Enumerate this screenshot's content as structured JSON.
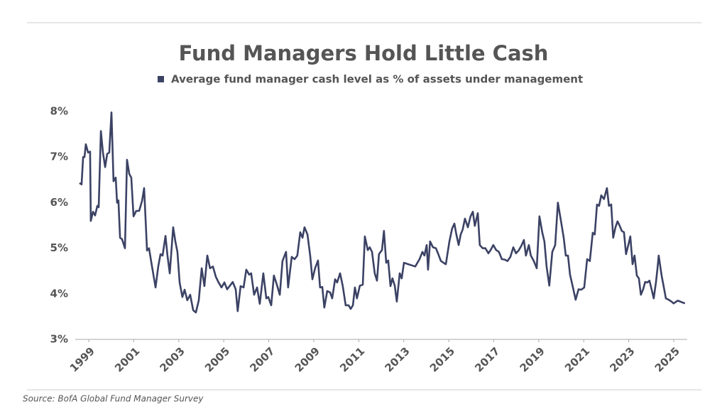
{
  "chart_data": {
    "type": "line",
    "title": "Fund Managers Hold Little Cash",
    "source": "Source: BofA Global Fund Manager Survey",
    "x": [
      1998.59,
      1998.68,
      1998.75,
      1998.81,
      1998.87,
      1998.97,
      1999.06,
      1999.09,
      1999.19,
      1999.28,
      1999.38,
      1999.44,
      1999.54,
      1999.63,
      1999.73,
      1999.82,
      1999.91,
      2000.01,
      2000.1,
      2000.2,
      2000.26,
      2000.32,
      2000.39,
      2000.48,
      2000.61,
      2000.7,
      2000.8,
      2000.89,
      2000.99,
      2001.11,
      2001.24,
      2001.37,
      2001.46,
      2001.59,
      2001.68,
      2001.81,
      2001.97,
      2002.09,
      2002.19,
      2002.28,
      2002.41,
      2002.5,
      2002.6,
      2002.75,
      2002.85,
      2002.94,
      2003.04,
      2003.16,
      2003.26,
      2003.38,
      2003.51,
      2003.64,
      2003.76,
      2003.89,
      2004.02,
      2004.14,
      2004.27,
      2004.39,
      2004.52,
      2004.65,
      2004.77,
      2004.9,
      2005.03,
      2005.15,
      2005.28,
      2005.4,
      2005.53,
      2005.62,
      2005.75,
      2005.88,
      2006.0,
      2006.13,
      2006.22,
      2006.35,
      2006.48,
      2006.6,
      2006.76,
      2006.89,
      2006.98,
      2007.11,
      2007.23,
      2007.36,
      2007.49,
      2007.61,
      2007.77,
      2007.86,
      2008.02,
      2008.15,
      2008.27,
      2008.4,
      2008.5,
      2008.59,
      2008.72,
      2008.84,
      2008.94,
      2009.06,
      2009.19,
      2009.28,
      2009.38,
      2009.47,
      2009.6,
      2009.73,
      2009.82,
      2009.95,
      2010.04,
      2010.17,
      2010.29,
      2010.42,
      2010.55,
      2010.64,
      2010.74,
      2010.83,
      2010.92,
      2011.05,
      2011.18,
      2011.27,
      2011.4,
      2011.49,
      2011.59,
      2011.71,
      2011.81,
      2011.9,
      2012.03,
      2012.12,
      2012.22,
      2012.31,
      2012.41,
      2012.5,
      2012.6,
      2012.69,
      2012.82,
      2012.91,
      2013.01,
      2013.51,
      2013.7,
      2013.83,
      2013.92,
      2014.02,
      2014.08,
      2014.17,
      2014.3,
      2014.43,
      2014.52,
      2014.65,
      2014.77,
      2014.87,
      2015.03,
      2015.15,
      2015.25,
      2015.34,
      2015.44,
      2015.53,
      2015.62,
      2015.72,
      2015.85,
      2015.97,
      2016.07,
      2016.16,
      2016.29,
      2016.38,
      2016.51,
      2016.63,
      2016.76,
      2016.86,
      2016.98,
      2017.11,
      2017.23,
      2017.36,
      2017.49,
      2017.61,
      2017.74,
      2017.87,
      2017.99,
      2018.12,
      2018.24,
      2018.34,
      2018.43,
      2018.56,
      2018.65,
      2018.78,
      2018.91,
      2019.03,
      2019.16,
      2019.25,
      2019.35,
      2019.47,
      2019.6,
      2019.73,
      2019.85,
      2019.98,
      2020.11,
      2020.2,
      2020.3,
      2020.39,
      2020.52,
      2020.64,
      2020.77,
      2020.89,
      2021.02,
      2021.15,
      2021.27,
      2021.4,
      2021.49,
      2021.59,
      2021.68,
      2021.78,
      2021.9,
      2022.03,
      2022.12,
      2022.22,
      2022.31,
      2022.41,
      2022.5,
      2022.6,
      2022.69,
      2022.79,
      2022.88,
      2022.98,
      2023.07,
      2023.17,
      2023.26,
      2023.36,
      2023.45,
      2023.54,
      2023.64,
      2023.73,
      2023.83,
      2023.92,
      2024.02,
      2024.11,
      2024.21,
      2024.27,
      2024.33,
      2024.46,
      2024.55,
      2024.65,
      2024.77,
      2024.9,
      2024.99,
      2025.18,
      2025.5
    ],
    "series": [
      {
        "name": "Average fund manager cash level as % of assets under management",
        "color": "#3b4264",
        "values": [
          6.43,
          6.4,
          7.0,
          7.0,
          7.28,
          7.1,
          7.12,
          5.6,
          5.8,
          5.72,
          5.93,
          5.9,
          7.57,
          7.1,
          6.78,
          7.07,
          7.1,
          7.98,
          6.47,
          6.55,
          6.0,
          6.05,
          5.23,
          5.2,
          5.0,
          6.94,
          6.63,
          6.55,
          5.7,
          5.82,
          5.82,
          6.04,
          6.32,
          4.95,
          5.0,
          4.6,
          4.14,
          4.6,
          4.87,
          4.84,
          5.27,
          4.84,
          4.45,
          5.46,
          5.15,
          4.92,
          4.25,
          3.93,
          4.09,
          3.86,
          3.98,
          3.64,
          3.59,
          3.86,
          4.56,
          4.17,
          4.84,
          4.56,
          4.6,
          4.37,
          4.25,
          4.14,
          4.25,
          4.1,
          4.18,
          4.26,
          4.1,
          3.62,
          4.17,
          4.14,
          4.53,
          4.42,
          4.45,
          3.98,
          4.14,
          3.78,
          4.45,
          3.9,
          3.93,
          3.75,
          4.4,
          4.2,
          3.98,
          4.72,
          4.92,
          4.14,
          4.81,
          4.76,
          4.84,
          5.35,
          5.23,
          5.46,
          5.3,
          4.84,
          4.32,
          4.56,
          4.73,
          4.14,
          4.15,
          3.7,
          4.06,
          4.03,
          3.9,
          4.32,
          4.25,
          4.45,
          4.17,
          3.75,
          3.75,
          3.67,
          3.75,
          4.14,
          3.9,
          4.18,
          4.2,
          5.26,
          4.96,
          5.02,
          4.92,
          4.45,
          4.29,
          4.87,
          4.96,
          5.38,
          4.68,
          4.73,
          4.17,
          4.34,
          4.18,
          3.83,
          4.45,
          4.34,
          4.68,
          4.6,
          4.76,
          4.92,
          4.84,
          5.07,
          4.53,
          5.15,
          5.02,
          5.0,
          4.89,
          4.72,
          4.68,
          4.65,
          5.15,
          5.43,
          5.54,
          5.3,
          5.07,
          5.3,
          5.41,
          5.65,
          5.46,
          5.7,
          5.8,
          5.49,
          5.77,
          5.07,
          5.0,
          5.0,
          4.89,
          4.96,
          5.07,
          4.96,
          4.92,
          4.76,
          4.75,
          4.72,
          4.81,
          5.02,
          4.89,
          4.96,
          5.07,
          5.18,
          4.84,
          5.07,
          4.84,
          4.72,
          4.56,
          5.7,
          5.34,
          5.15,
          4.6,
          4.18,
          4.92,
          5.07,
          6.0,
          5.62,
          5.23,
          4.84,
          4.84,
          4.42,
          4.14,
          3.87,
          4.1,
          4.09,
          4.14,
          4.76,
          4.72,
          5.34,
          5.3,
          5.96,
          5.93,
          6.16,
          6.08,
          6.32,
          5.93,
          5.96,
          5.23,
          5.46,
          5.59,
          5.49,
          5.38,
          5.35,
          4.87,
          5.07,
          5.26,
          4.65,
          4.84,
          4.4,
          4.34,
          3.98,
          4.1,
          4.26,
          4.25,
          4.29,
          4.09,
          3.9,
          4.25,
          4.53,
          4.84,
          4.4,
          4.17,
          3.9,
          3.87,
          3.83,
          3.79,
          3.85,
          3.79
        ]
      }
    ],
    "xlim": [
      1998.4,
      2025.6
    ],
    "xticks": [
      1999,
      2001,
      2003,
      2005,
      2007,
      2009,
      2011,
      2013,
      2015,
      2017,
      2019,
      2021,
      2023,
      2025
    ],
    "ylim": [
      3,
      8
    ],
    "yticks": [
      {
        "value": 3,
        "label": "3%"
      },
      {
        "value": 4,
        "label": "4%"
      },
      {
        "value": 5,
        "label": "5%"
      },
      {
        "value": 6,
        "label": "6%"
      },
      {
        "value": 7,
        "label": "7%"
      },
      {
        "value": 8,
        "label": "8%"
      }
    ],
    "grid": false
  }
}
